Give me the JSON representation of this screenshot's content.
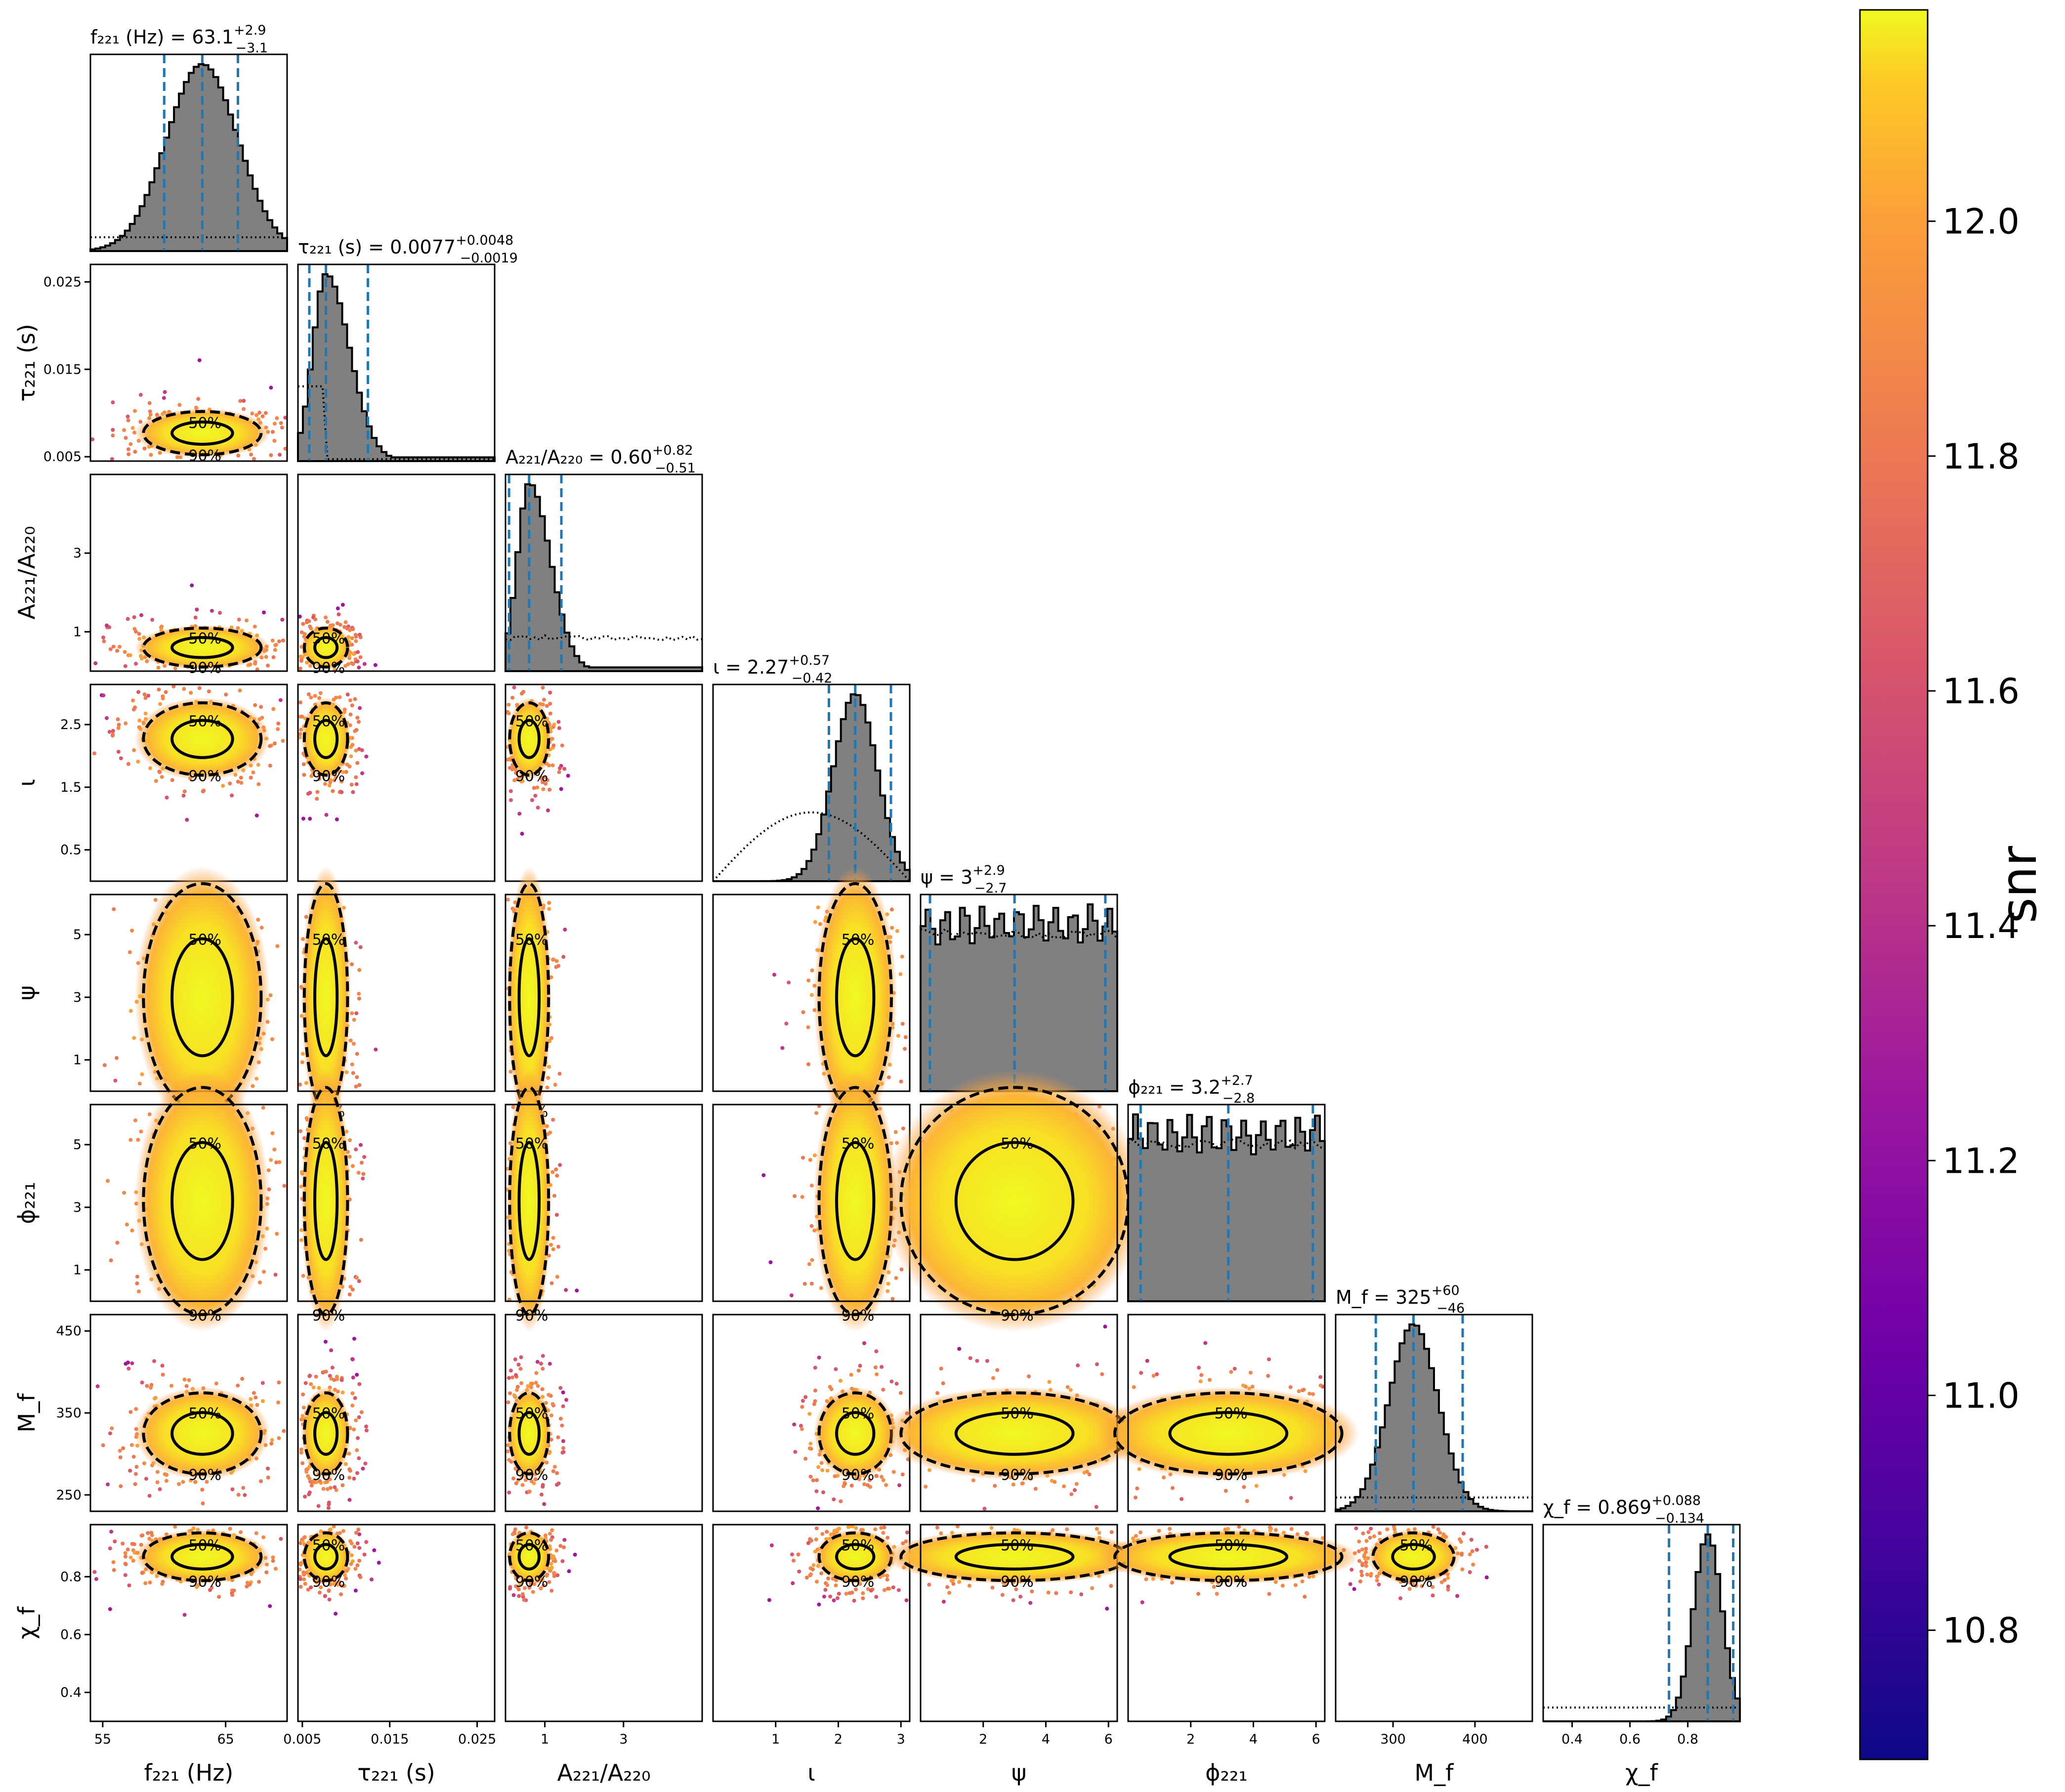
{
  "chart_data": {
    "type": "scatter",
    "parameters": [
      {
        "key": "f221",
        "xlabel": "f₂₂₁ (Hz)",
        "ticks": [
          55,
          65
        ],
        "range": [
          54,
          70
        ],
        "peak": 63.1,
        "width": 2.9
      },
      {
        "key": "tau221",
        "xlabel": "τ₂₂₁ (s)",
        "ticks": [
          0.005,
          0.015,
          0.025
        ],
        "range": [
          0.0045,
          0.027
        ],
        "peak": 0.0077,
        "width": 0.0015
      },
      {
        "key": "A221A220",
        "xlabel": "A₂₂₁/A₂₂₀",
        "ticks": [
          1,
          3
        ],
        "range": [
          0,
          5.0
        ],
        "peak": 0.6,
        "width": 0.3
      },
      {
        "key": "iota",
        "xlabel": "ι",
        "ticks": [
          1,
          2,
          3
        ],
        "range": [
          0,
          3.14
        ],
        "peak": 2.27,
        "width": 0.35
      },
      {
        "key": "psi",
        "xlabel": "ψ",
        "ticks": [
          2,
          4,
          6
        ],
        "range": [
          0,
          6.28
        ],
        "peak": 3.0,
        "width": 3.0
      },
      {
        "key": "phi221",
        "xlabel": "ϕ₂₂₁",
        "ticks": [
          2,
          4,
          6
        ],
        "range": [
          0,
          6.28
        ],
        "peak": 3.2,
        "width": 3.0
      },
      {
        "key": "Mf",
        "xlabel": "M_f",
        "ticks": [
          300,
          400
        ],
        "range": [
          230,
          470
        ],
        "peak": 325,
        "width": 30
      },
      {
        "key": "chif",
        "xlabel": "χ_f",
        "ticks": [
          0.4,
          0.6,
          0.8
        ],
        "range": [
          0.3,
          0.98
        ],
        "peak": 0.869,
        "width": 0.05
      }
    ],
    "ylabels": [
      "",
      "τ₂₂₁ (s)",
      "A₂₂₁/A₂₂₀",
      "ι",
      "ψ",
      "ϕ₂₂₁",
      "M_f",
      "χ_f"
    ],
    "yticks": [
      [],
      [
        "0.005",
        "0.015",
        "0.025"
      ],
      [
        "1",
        "3"
      ],
      [
        "0.5",
        "1.5",
        "2.5"
      ],
      [
        "1",
        "3",
        "5"
      ],
      [
        "1",
        "3",
        "5"
      ],
      [
        "250",
        "350",
        "450"
      ],
      [
        "0.4",
        "0.6",
        "0.8"
      ]
    ],
    "ytick_values": [
      [],
      [
        0.005,
        0.015,
        0.025
      ],
      [
        1,
        3
      ],
      [
        0.5,
        1.5,
        2.5
      ],
      [
        1,
        3,
        5
      ],
      [
        1,
        3,
        5
      ],
      [
        250,
        350,
        450
      ],
      [
        0.4,
        0.6,
        0.8
      ]
    ],
    "xtick_labels": [
      [
        "55",
        "65"
      ],
      [
        "0.005",
        "0.015",
        "0.025"
      ],
      [
        "1",
        "3"
      ],
      [
        "1",
        "2",
        "3"
      ],
      [
        "2",
        "4",
        "6"
      ],
      [
        "2",
        "4",
        "6"
      ],
      [
        "300",
        "400"
      ],
      [
        "0.4",
        "0.6",
        "0.8"
      ]
    ],
    "marginal_titles": [
      {
        "lhs": "f₂₂₁ (Hz) = 63.1",
        "up": "+2.9",
        "down": "−3.1"
      },
      {
        "lhs": "τ₂₂₁ (s) = 0.0077",
        "up": "+0.0048",
        "down": "−0.0019"
      },
      {
        "lhs": "A₂₂₁/A₂₂₀ = 0.60",
        "up": "+0.82",
        "down": "−0.51"
      },
      {
        "lhs": "ι = 2.27",
        "up": "+0.57",
        "down": "−0.42"
      },
      {
        "lhs": "ψ = 3",
        "up": "+2.9",
        "down": "−2.7"
      },
      {
        "lhs": "ϕ₂₂₁ = 3.2",
        "up": "+2.7",
        "down": "−2.8"
      },
      {
        "lhs": "M_f = 325",
        "up": "+60",
        "down": "−46"
      },
      {
        "lhs": "χ_f = 0.869",
        "up": "+0.088",
        "down": "−0.134"
      }
    ],
    "marginal_quantiles": [
      [
        60.0,
        63.1,
        66.0
      ],
      [
        0.0058,
        0.0077,
        0.0125
      ],
      [
        0.09,
        0.6,
        1.42
      ],
      [
        1.85,
        2.27,
        2.84
      ],
      [
        0.3,
        3.0,
        5.9
      ],
      [
        0.4,
        3.2,
        5.9
      ],
      [
        279,
        325,
        385
      ],
      [
        0.735,
        0.869,
        0.957
      ]
    ],
    "contour_labels": [
      "50%",
      "90%"
    ],
    "colorbar": {
      "label": "snr",
      "ticks": [
        "10.8",
        "11.0",
        "11.2",
        "11.4",
        "11.6",
        "11.8",
        "12.0"
      ],
      "tick_values": [
        10.8,
        11.0,
        11.2,
        11.4,
        11.6,
        11.8,
        12.0
      ],
      "range": [
        10.69,
        12.18
      ]
    },
    "colors": {
      "hist_fill": "#808080",
      "quantile_line": "#1f77b4",
      "contour": "#000000"
    }
  }
}
